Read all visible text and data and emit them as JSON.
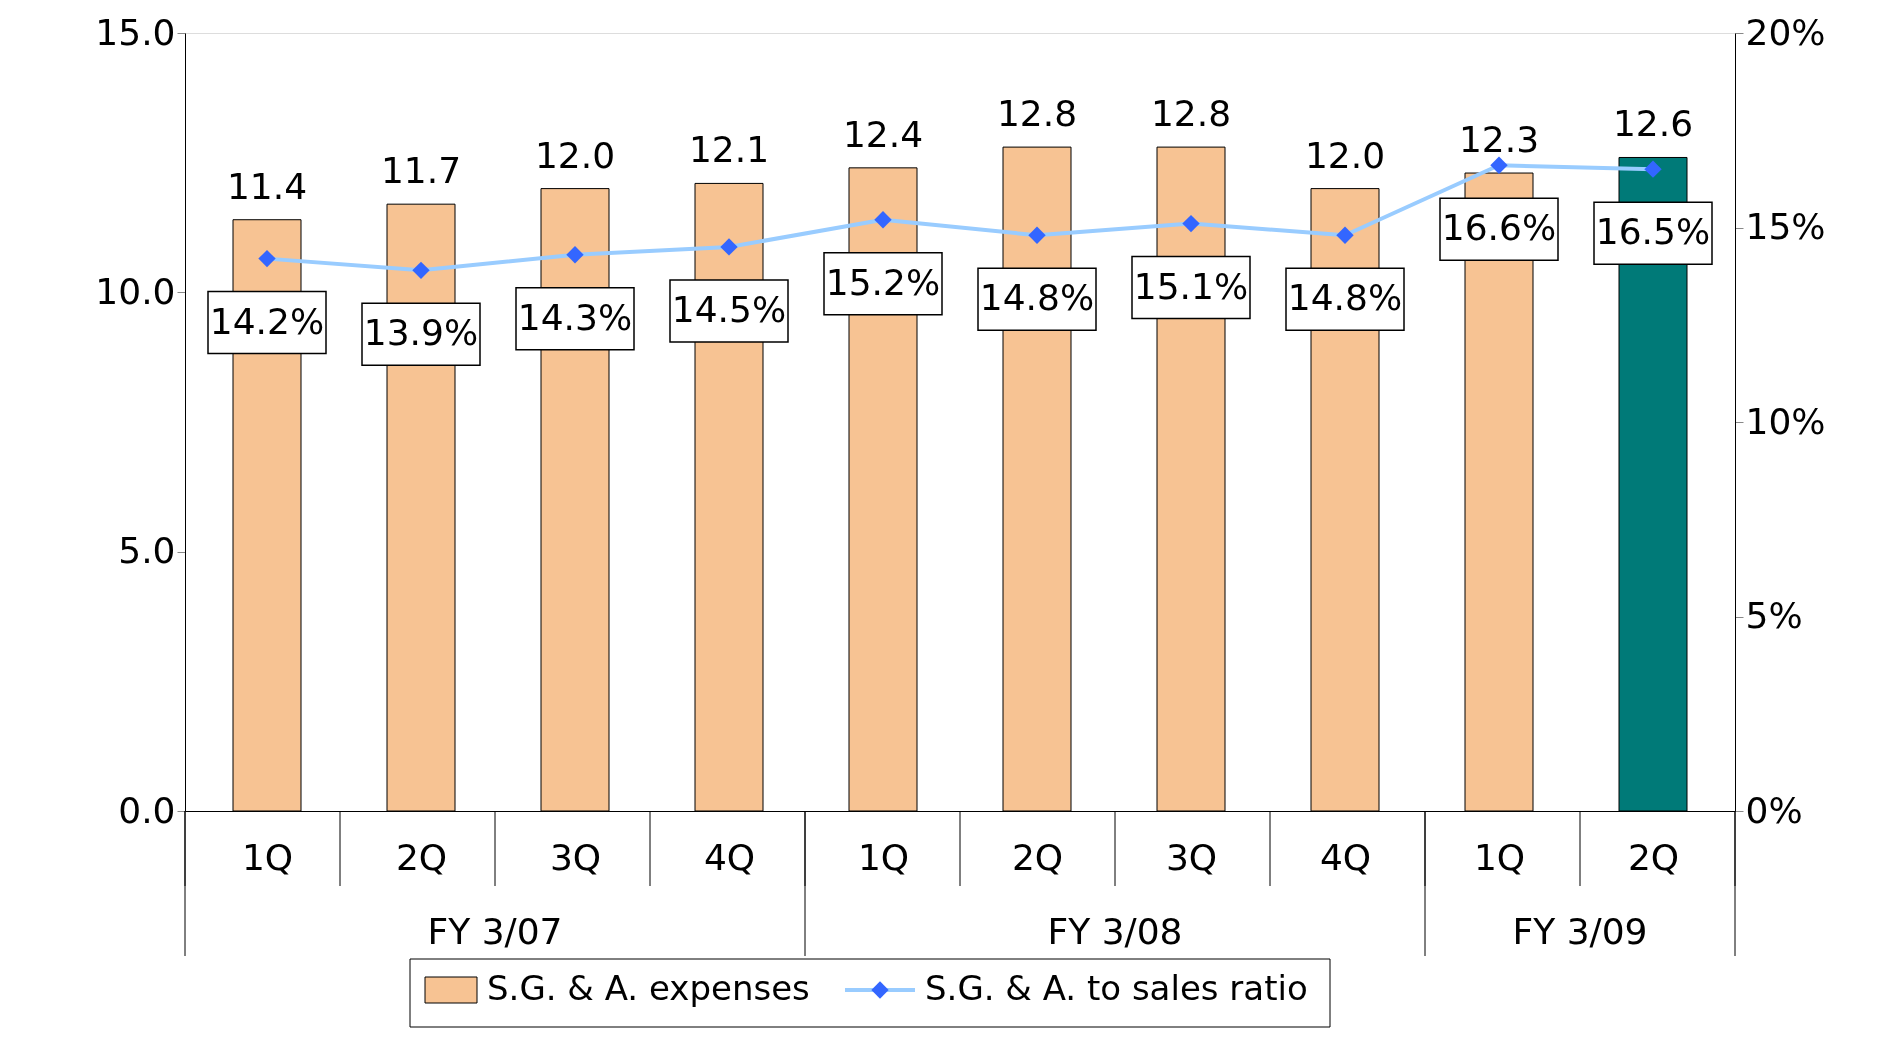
{
  "chart_data": {
    "type": "bar",
    "categories": [
      "1Q",
      "2Q",
      "3Q",
      "4Q",
      "1Q",
      "2Q",
      "3Q",
      "4Q",
      "1Q",
      "2Q"
    ],
    "series": [
      {
        "name": "S.G. & A. expenses",
        "colors": [
          "#f7c393",
          "#f7c393",
          "#f7c393",
          "#f7c393",
          "#f7c393",
          "#f7c393",
          "#f7c393",
          "#f7c393",
          "#f7c393",
          "#007a78"
        ],
        "color": "#f7c393",
        "values": [
          11.4,
          11.7,
          12.0,
          12.1,
          12.4,
          12.8,
          12.8,
          12.0,
          12.3,
          12.6
        ],
        "value_labels": [
          "11.4",
          "11.7",
          "12.0",
          "12.1",
          "12.4",
          "12.8",
          "12.8",
          "12.0",
          "12.3",
          "12.6"
        ]
      },
      {
        "name": "S.G. & A. to sales ratio",
        "type": "line",
        "axis": "y2",
        "color": "#99ccff",
        "values": [
          14.2,
          13.9,
          14.3,
          14.5,
          15.2,
          14.8,
          15.1,
          14.8,
          16.6,
          16.5
        ],
        "value_labels": [
          "14.2%",
          "13.9%",
          "14.3%",
          "14.5%",
          "15.2%",
          "14.8%",
          "15.1%",
          "14.8%",
          "16.6%",
          "16.5%"
        ]
      }
    ],
    "marker": "diamond",
    "annotations": [
      "FY 3/07",
      "FY 3/08",
      "FY 3/09"
    ],
    "ylim": [
      0,
      15
    ],
    "yticks": [
      {
        "value": 0,
        "label": "0.0"
      },
      {
        "value": 5,
        "label": "5.0"
      },
      {
        "value": 10,
        "label": "10.0"
      },
      {
        "value": 15,
        "label": "15.0"
      }
    ],
    "y2lim": [
      0,
      20
    ],
    "y2ticks": [
      {
        "value": 0,
        "label": "0%"
      },
      {
        "value": 5,
        "label": "5%"
      },
      {
        "value": 10,
        "label": "10%"
      },
      {
        "value": 15,
        "label": "15%"
      },
      {
        "value": 20,
        "label": "20%"
      }
    ],
    "grid": false,
    "legend": "bottom"
  }
}
